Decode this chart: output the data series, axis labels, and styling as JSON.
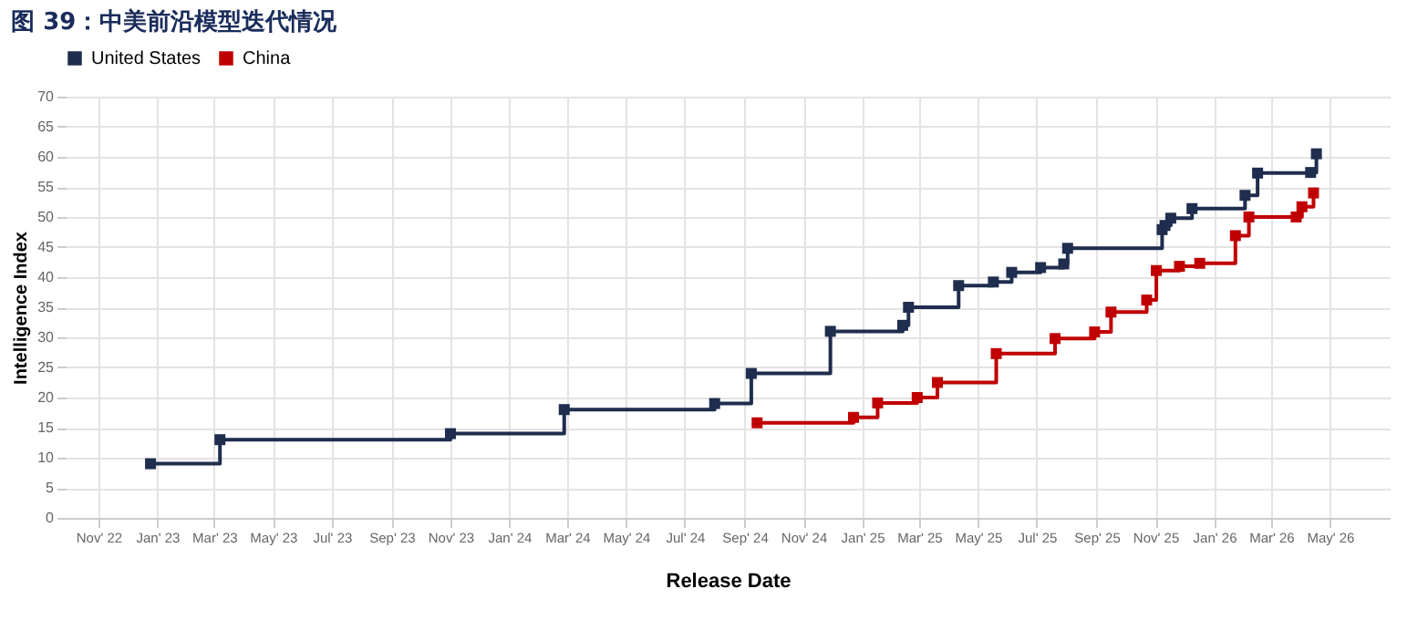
{
  "chart_data": {
    "type": "step",
    "title": "图 39：中美前沿模型迭代情况",
    "xlabel": "Release Date",
    "ylabel": "Intelligence Index",
    "xlim": [
      "2022-09-28",
      "2026-07-02"
    ],
    "xticks": [
      {
        "value": "2022-11-01",
        "label": "Nov' 22"
      },
      {
        "value": "2023-01-01",
        "label": "Jan' 23"
      },
      {
        "value": "2023-03-01",
        "label": "Mar' 23"
      },
      {
        "value": "2023-05-01",
        "label": "May' 23"
      },
      {
        "value": "2023-07-01",
        "label": "Jul' 23"
      },
      {
        "value": "2023-09-01",
        "label": "Sep' 23"
      },
      {
        "value": "2023-11-01",
        "label": "Nov' 23"
      },
      {
        "value": "2024-01-01",
        "label": "Jan' 24"
      },
      {
        "value": "2024-03-01",
        "label": "Mar' 24"
      },
      {
        "value": "2024-05-01",
        "label": "May' 24"
      },
      {
        "value": "2024-07-01",
        "label": "Jul' 24"
      },
      {
        "value": "2024-09-01",
        "label": "Sep' 24"
      },
      {
        "value": "2024-11-01",
        "label": "Nov' 24"
      },
      {
        "value": "2025-01-01",
        "label": "Jan' 25"
      },
      {
        "value": "2025-03-01",
        "label": "Mar' 25"
      },
      {
        "value": "2025-05-01",
        "label": "May' 25"
      },
      {
        "value": "2025-07-01",
        "label": "Jul' 25"
      },
      {
        "value": "2025-09-01",
        "label": "Sep' 25"
      },
      {
        "value": "2025-11-01",
        "label": "Nov' 25"
      },
      {
        "value": "2026-01-01",
        "label": "Jan' 26"
      },
      {
        "value": "2026-03-01",
        "label": "Mar' 26"
      },
      {
        "value": "2026-05-01",
        "label": "May' 26"
      }
    ],
    "ylim": [
      0,
      70
    ],
    "yticks": [
      0,
      5,
      10,
      15,
      20,
      25,
      30,
      35,
      40,
      45,
      50,
      55,
      60,
      65,
      70
    ],
    "grid": true,
    "legend": "top left",
    "marker": "square",
    "line_style": "solid",
    "series": [
      {
        "name": "United States",
        "color": "#1f2d4e",
        "x": [
          "2022-12-25",
          "2023-03-07",
          "2023-11-01",
          "2024-02-27",
          "2024-08-01",
          "2024-09-08",
          "2024-11-29",
          "2025-02-12",
          "2025-02-18",
          "2025-04-11",
          "2025-05-17",
          "2025-06-05",
          "2025-07-05",
          "2025-07-29",
          "2025-08-02",
          "2025-11-08",
          "2025-11-11",
          "2025-11-17",
          "2025-12-09",
          "2026-02-02",
          "2026-02-15",
          "2026-04-11",
          "2026-04-17"
        ],
        "values": [
          9,
          13,
          14,
          18,
          19,
          24,
          31,
          32,
          35,
          38.6,
          39.2,
          40.8,
          41.6,
          42.2,
          44.8,
          47.9,
          48.6,
          49.8,
          51.4,
          53.6,
          57.3,
          57.4,
          60.5
        ]
      },
      {
        "name": "China",
        "color": "#c00000",
        "x": [
          "2024-09-14",
          "2024-12-23",
          "2025-01-17",
          "2025-02-27",
          "2025-03-20",
          "2025-05-20",
          "2025-07-20",
          "2025-08-30",
          "2025-09-16",
          "2025-10-23",
          "2025-11-02",
          "2025-11-26",
          "2025-12-17",
          "2026-01-23",
          "2026-02-06",
          "2026-03-27",
          "2026-04-02",
          "2026-04-14"
        ],
        "values": [
          15.8,
          16.7,
          19.1,
          20,
          22.5,
          27.3,
          29.8,
          30.9,
          34.2,
          36.2,
          41.1,
          41.8,
          42.3,
          46.9,
          50,
          50,
          51.7,
          54
        ]
      }
    ]
  }
}
